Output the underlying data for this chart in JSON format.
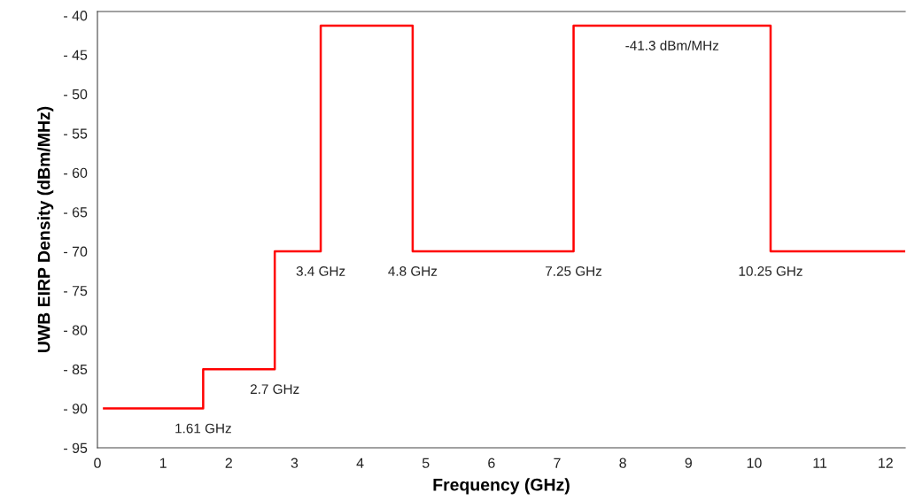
{
  "chart_data": {
    "type": "step",
    "xlabel": "Frequency (GHz)",
    "ylabel": "UWB EIRP Density (dBm/MHz)",
    "x": [
      0.1,
      1.61,
      2.7,
      3.4,
      4.8,
      7.25,
      10.25,
      12.3
    ],
    "series": [
      {
        "color": "#ff0000",
        "values": [
          -90,
          -85,
          -70,
          -41.3,
          -70,
          -41.3,
          -70,
          -70
        ]
      }
    ],
    "xlim": [
      0,
      12.3
    ],
    "xticks": [
      0,
      1,
      2,
      3,
      4,
      5,
      6,
      7,
      8,
      9,
      10,
      11,
      12
    ],
    "ylim": [
      -95,
      -39.5
    ],
    "yticks": [
      {
        "value": -95,
        "label": "- 95"
      },
      {
        "value": -90,
        "label": "- 90"
      },
      {
        "value": -85,
        "label": "- 85"
      },
      {
        "value": -80,
        "label": "- 80"
      },
      {
        "value": -75,
        "label": "- 75"
      },
      {
        "value": -70,
        "label": "- 70"
      },
      {
        "value": -65,
        "label": "- 65"
      },
      {
        "value": -60,
        "label": "- 60"
      },
      {
        "value": -55,
        "label": "- 55"
      },
      {
        "value": -50,
        "label": "- 50"
      },
      {
        "value": -45,
        "label": "- 45"
      },
      {
        "value": -40,
        "label": "- 40"
      }
    ],
    "annotations": [
      {
        "text": "1.61 GHz",
        "x": 1.61,
        "y": -90
      },
      {
        "text": "2.7 GHz",
        "x": 2.7,
        "y": -85
      },
      {
        "text": "3.4 GHz",
        "x": 3.4,
        "y": -70
      },
      {
        "text": "4.8 GHz",
        "x": 4.8,
        "y": -70
      },
      {
        "text": "7.25 GHz",
        "x": 7.25,
        "y": -70
      },
      {
        "text": "10.25 GHz",
        "x": 10.25,
        "y": -70
      },
      {
        "text": "-41.3 dBm/MHz",
        "x": 8.75,
        "y": -41.3
      }
    ],
    "grid": false
  }
}
